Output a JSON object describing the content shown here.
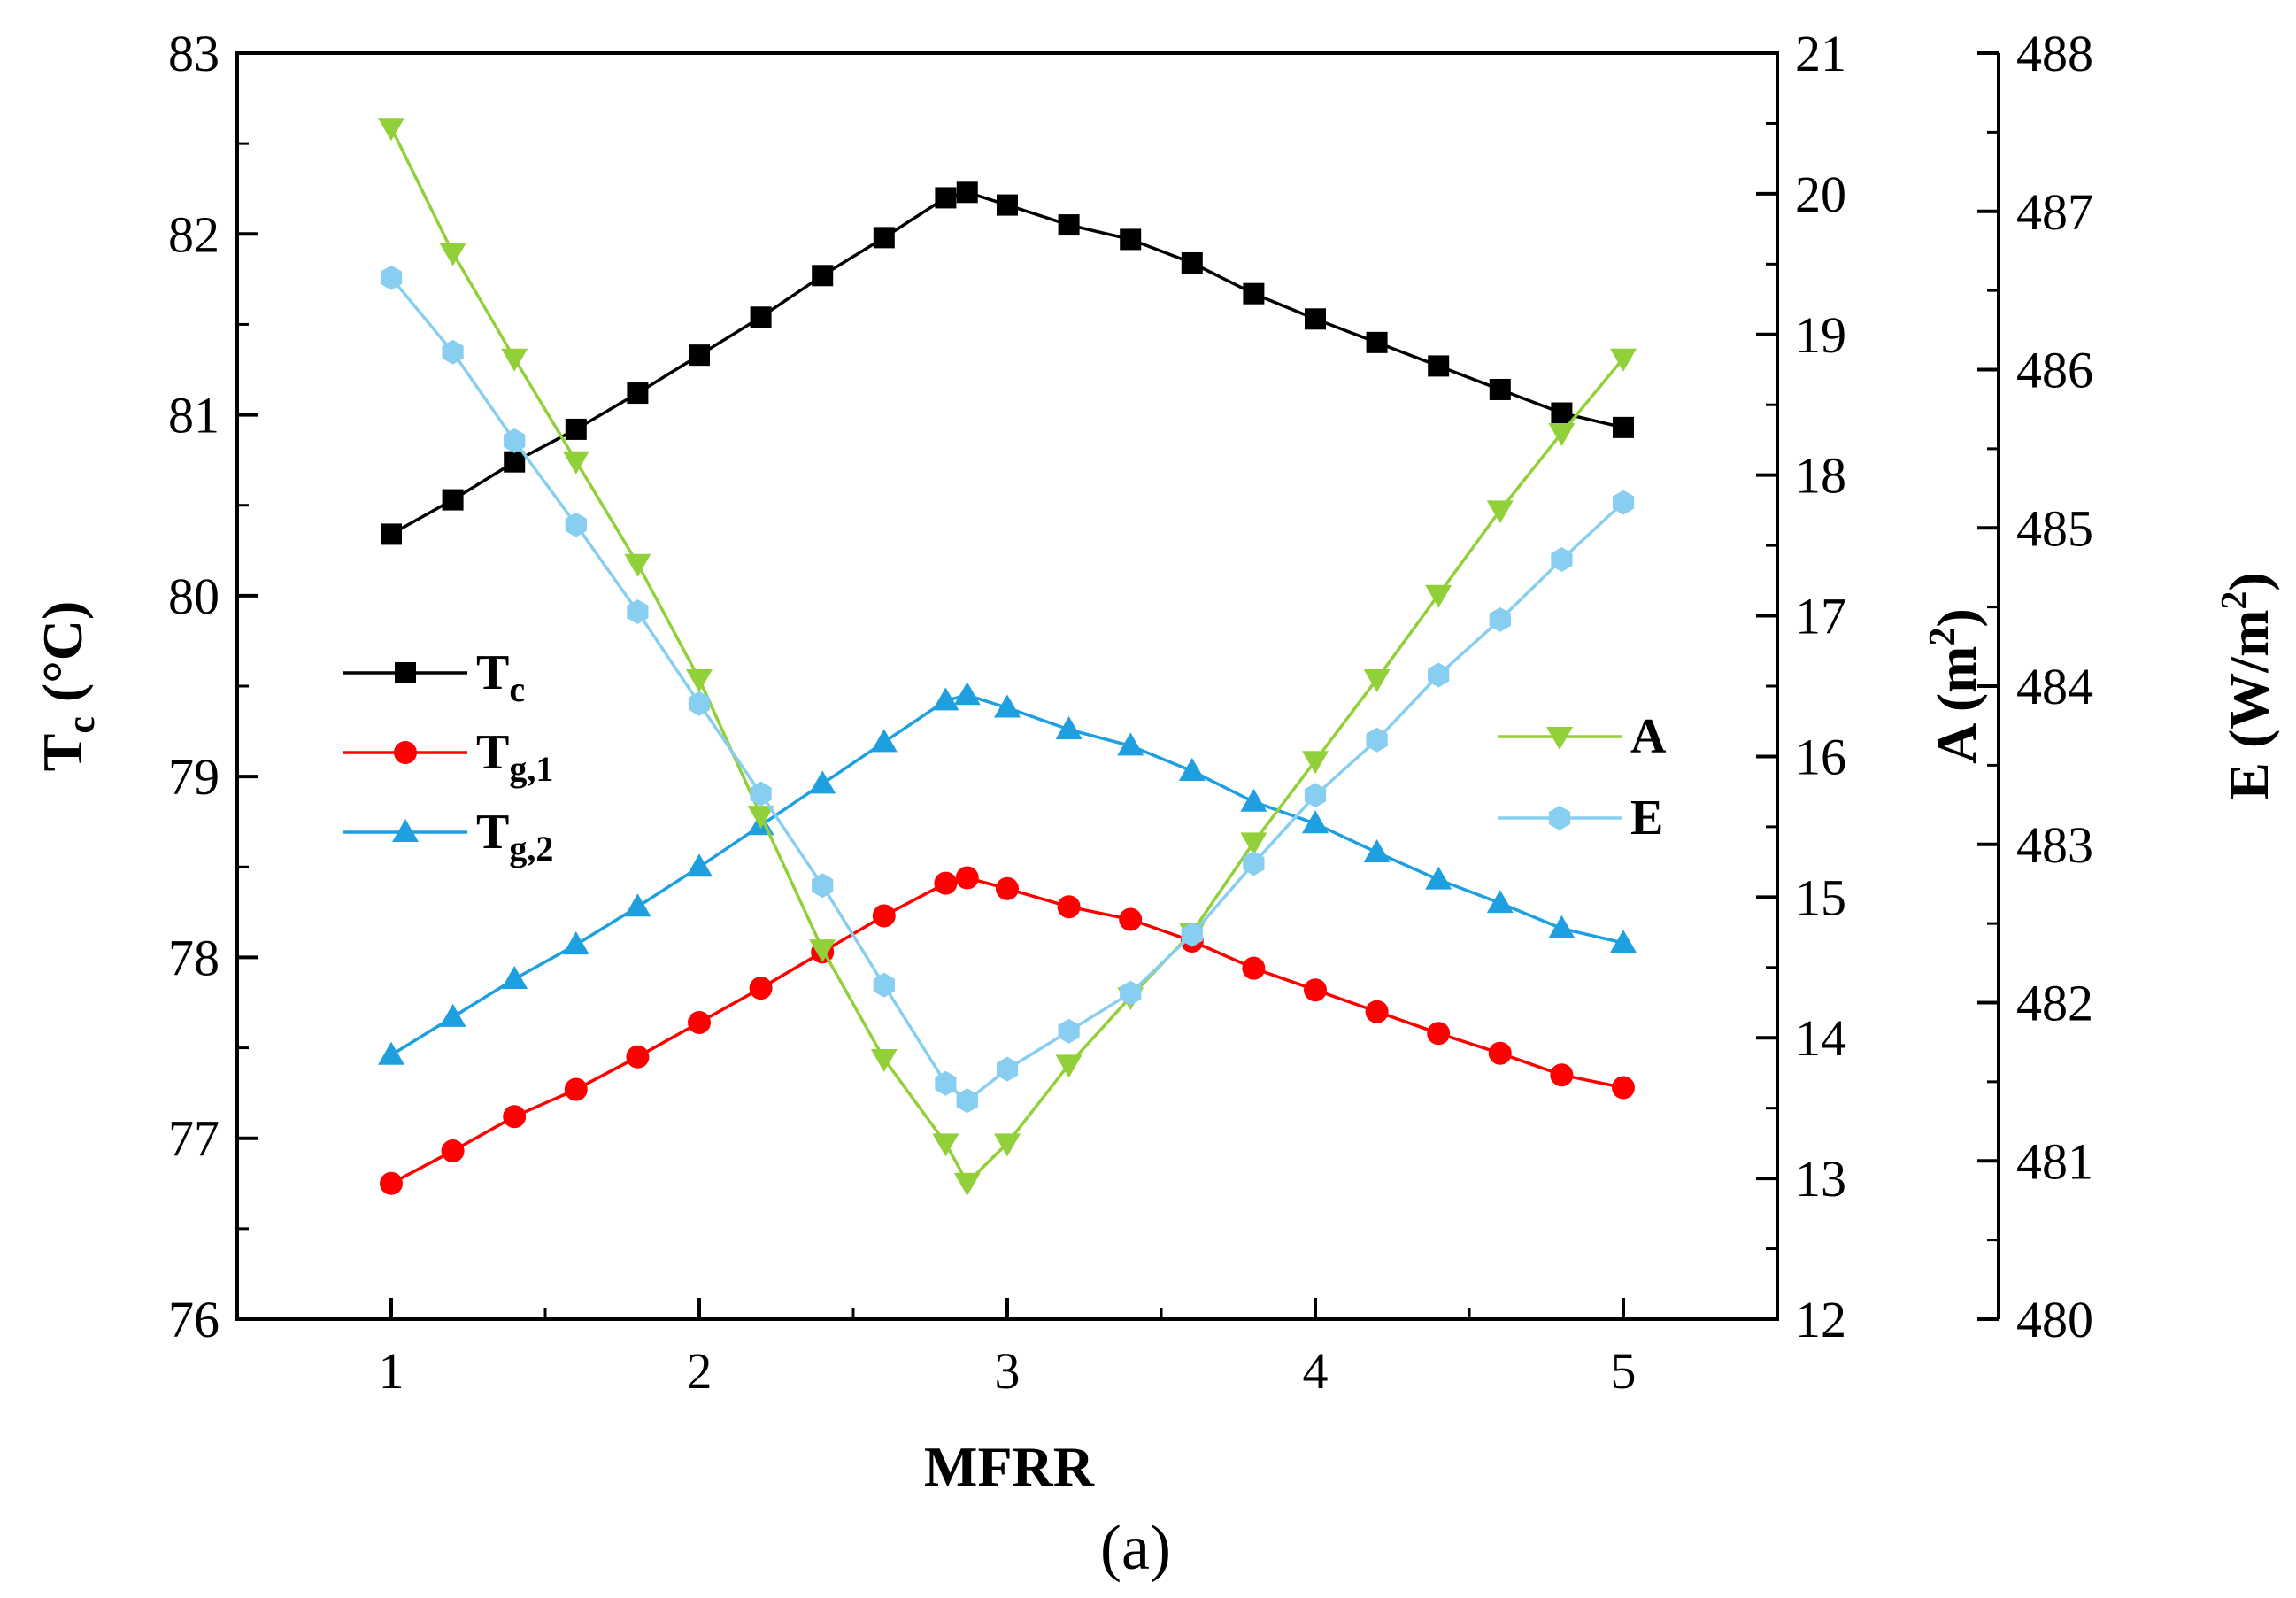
{
  "chart_data": {
    "type": "line",
    "caption": "(a)",
    "xlabel": "MFRR",
    "xlim": [
      0.5,
      5.5
    ],
    "xticks": [
      1,
      2,
      3,
      4,
      5
    ],
    "axes": {
      "left": {
        "label_main": "T",
        "label_sub": "c",
        "label_unit": " (°C)",
        "lim": [
          76,
          83
        ],
        "ticks": [
          76,
          77,
          78,
          79,
          80,
          81,
          82,
          83
        ]
      },
      "right1": {
        "label_main": "A (m",
        "label_sup": "2",
        "label_end": ")",
        "lim": [
          12,
          21
        ],
        "ticks": [
          12,
          13,
          14,
          15,
          16,
          17,
          18,
          19,
          20,
          21
        ]
      },
      "right2": {
        "label_main": "E (W/m",
        "label_sup": "2",
        "label_end": ")",
        "lim": [
          480,
          488
        ],
        "ticks": [
          480,
          481,
          482,
          483,
          484,
          485,
          486,
          487,
          488
        ]
      }
    },
    "x": [
      1.0,
      1.2,
      1.4,
      1.6,
      1.8,
      2.0,
      2.2,
      2.4,
      2.6,
      2.8,
      2.87,
      3.0,
      3.2,
      3.4,
      3.6,
      3.8,
      4.0,
      4.2,
      4.4,
      4.6,
      4.8,
      5.0
    ],
    "series": [
      {
        "key": "Tc",
        "name": "T",
        "sub": "c",
        "axis": "left",
        "color": "#000000",
        "marker": "square",
        "values": [
          80.34,
          80.53,
          80.74,
          80.92,
          81.12,
          81.33,
          81.54,
          81.77,
          81.98,
          82.2,
          82.23,
          82.16,
          82.05,
          81.97,
          81.84,
          81.67,
          81.53,
          81.4,
          81.27,
          81.14,
          81.01,
          80.93
        ]
      },
      {
        "key": "Tg1",
        "name": "T",
        "sub": "g,1",
        "axis": "left",
        "color": "#ff0000",
        "marker": "circle",
        "values": [
          76.75,
          76.93,
          77.12,
          77.27,
          77.45,
          77.64,
          77.83,
          78.03,
          78.23,
          78.41,
          78.44,
          78.38,
          78.28,
          78.21,
          78.09,
          77.94,
          77.82,
          77.7,
          77.58,
          77.47,
          77.35,
          77.28
        ]
      },
      {
        "key": "Tg2",
        "name": "T",
        "sub": "g,2",
        "axis": "left",
        "color": "#1e9fe0",
        "marker": "triangle-up",
        "values": [
          77.46,
          77.67,
          77.88,
          78.07,
          78.28,
          78.5,
          78.73,
          78.96,
          79.19,
          79.42,
          79.45,
          79.38,
          79.26,
          79.17,
          79.03,
          78.86,
          78.74,
          78.58,
          78.43,
          78.3,
          78.16,
          78.08
        ]
      },
      {
        "key": "A",
        "name": "A",
        "sub": "",
        "axis": "right1",
        "color": "#92d03a",
        "marker": "triangle-down",
        "values": [
          20.47,
          19.58,
          18.83,
          18.1,
          17.37,
          16.55,
          15.58,
          14.63,
          13.85,
          13.25,
          12.97,
          13.25,
          13.81,
          14.29,
          14.75,
          15.39,
          15.97,
          16.55,
          17.15,
          17.75,
          18.3,
          18.83
        ]
      },
      {
        "key": "E",
        "name": "E",
        "sub": "",
        "axis": "right2",
        "color": "#87cef0",
        "marker": "hexagon",
        "values": [
          486.58,
          486.11,
          485.55,
          485.02,
          484.47,
          483.89,
          483.32,
          482.74,
          482.11,
          481.49,
          481.38,
          481.58,
          481.82,
          482.06,
          482.43,
          482.88,
          483.31,
          483.66,
          484.07,
          484.42,
          484.8,
          485.16
        ]
      }
    ],
    "legend_left": [
      "Tc",
      "Tg1",
      "Tg2"
    ],
    "legend_right": [
      "A",
      "E"
    ]
  }
}
